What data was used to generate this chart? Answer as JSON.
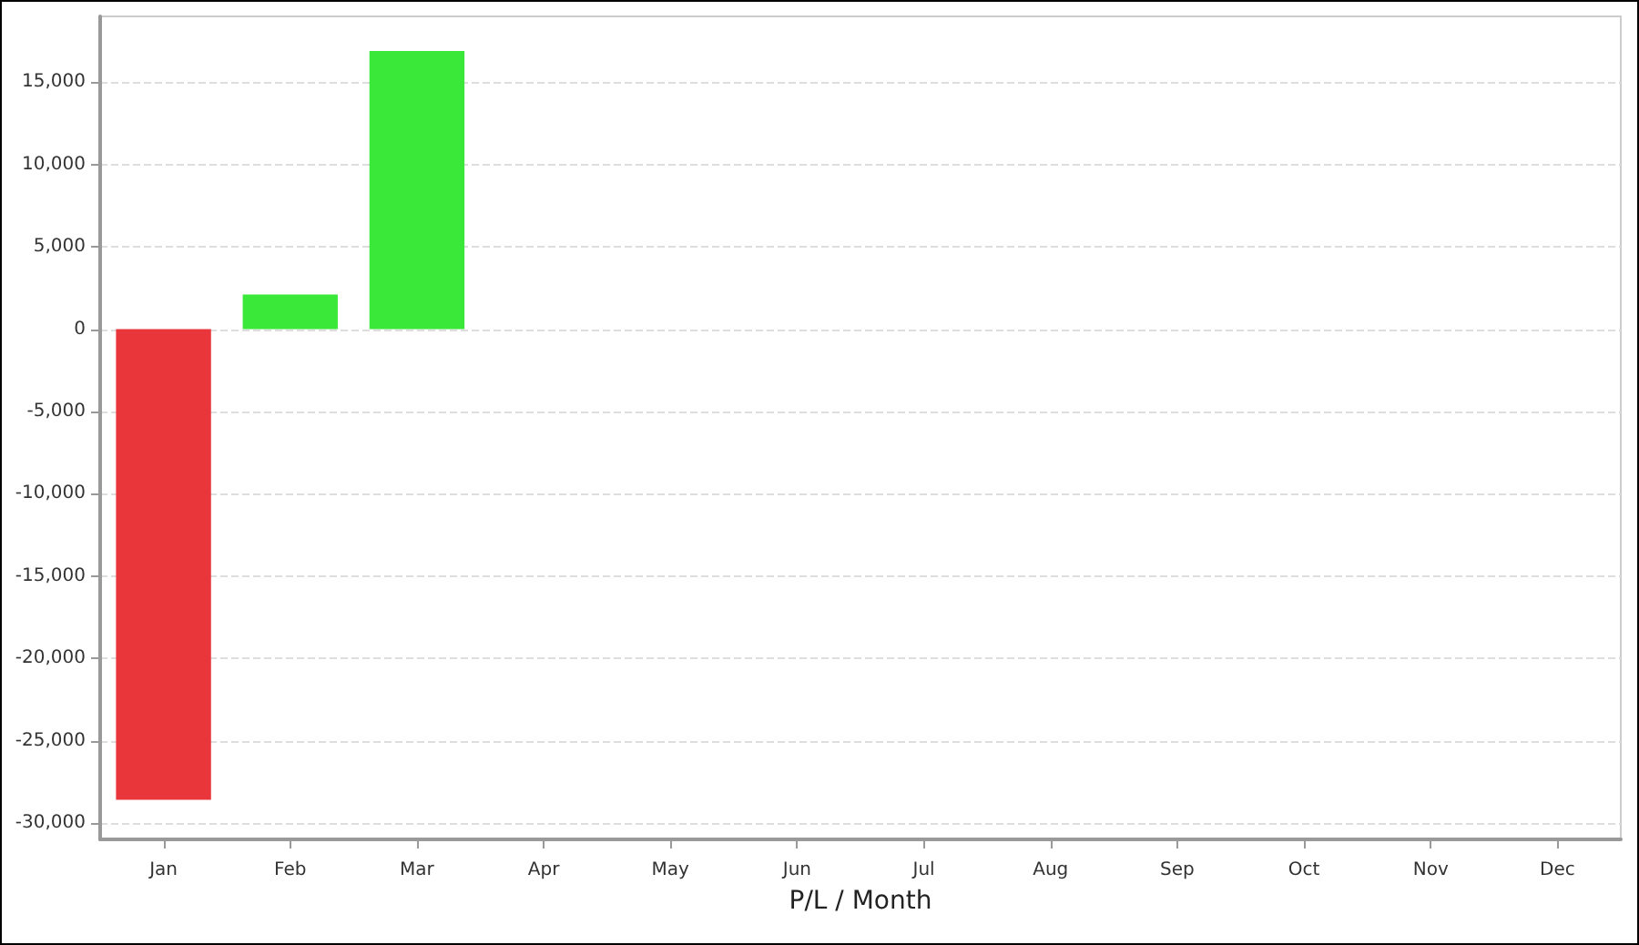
{
  "chart_data": {
    "type": "bar",
    "xlabel": "P/L / Month",
    "categories": [
      "Jan",
      "Feb",
      "Mar",
      "Apr",
      "May",
      "Jun",
      "Jul",
      "Aug",
      "Sep",
      "Oct",
      "Nov",
      "Dec"
    ],
    "values": [
      -28600,
      2100,
      16900,
      null,
      null,
      null,
      null,
      null,
      null,
      null,
      null,
      null
    ],
    "colors": [
      "#e8363b",
      "#3ae83a",
      "#3ae83a",
      null,
      null,
      null,
      null,
      null,
      null,
      null,
      null,
      null
    ],
    "ylim": [
      -31000,
      19000
    ],
    "yticks": [
      {
        "value": -30000,
        "label": "-30,000"
      },
      {
        "value": -25000,
        "label": "-25,000"
      },
      {
        "value": -20000,
        "label": "-20,000"
      },
      {
        "value": -15000,
        "label": "-15,000"
      },
      {
        "value": -10000,
        "label": "-10,000"
      },
      {
        "value": -5000,
        "label": "-5,000"
      },
      0,
      {
        "value": 5000,
        "label": "5,000"
      },
      {
        "value": 10000,
        "label": "10,000"
      },
      {
        "value": 15000,
        "label": "15,000"
      }
    ],
    "grid": "y"
  }
}
